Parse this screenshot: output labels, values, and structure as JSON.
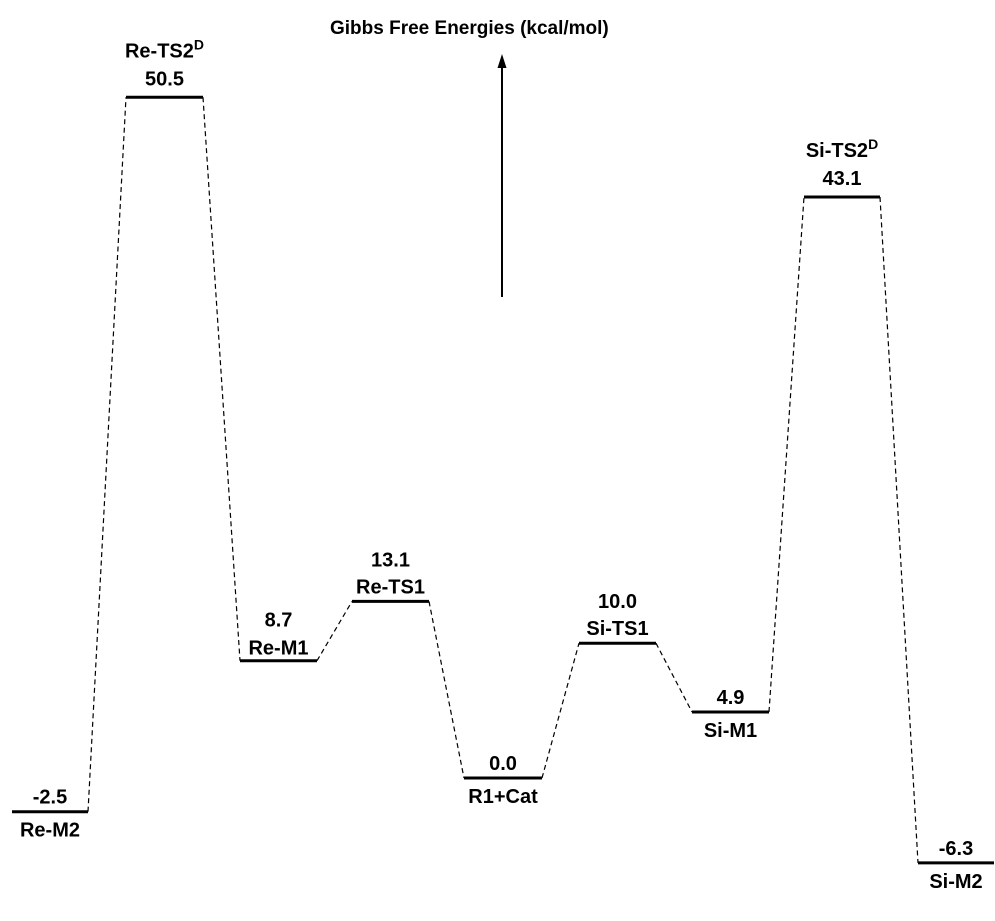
{
  "title": "Gibbs Free Energies (kcal/mol)",
  "states": [
    {
      "id": "re-m2",
      "name": "Re-M2",
      "sup": "",
      "energy": -2.5,
      "energy_label": "-2.5"
    },
    {
      "id": "re-ts2d",
      "name": "Re-TS2",
      "sup": "D",
      "energy": 50.5,
      "energy_label": "50.5"
    },
    {
      "id": "re-m1",
      "name": "Re-M1",
      "sup": "",
      "energy": 8.7,
      "energy_label": "8.7"
    },
    {
      "id": "re-ts1",
      "name": "Re-TS1",
      "sup": "",
      "energy": 13.1,
      "energy_label": "13.1"
    },
    {
      "id": "r1-cat",
      "name": "R1+Cat",
      "sup": "",
      "energy": 0.0,
      "energy_label": "0.0"
    },
    {
      "id": "si-ts1",
      "name": "Si-TS1",
      "sup": "",
      "energy": 10.0,
      "energy_label": "10.0"
    },
    {
      "id": "si-m1",
      "name": "Si-M1",
      "sup": "",
      "energy": 4.9,
      "energy_label": "4.9"
    },
    {
      "id": "si-ts2d",
      "name": "Si-TS2",
      "sup": "D",
      "energy": 43.1,
      "energy_label": "43.1"
    },
    {
      "id": "si-m2",
      "name": "Si-M2",
      "sup": "",
      "energy": -6.3,
      "energy_label": "-6.3"
    }
  ],
  "connections": [
    [
      "re-m2",
      "re-ts2d"
    ],
    [
      "re-ts2d",
      "re-m1"
    ],
    [
      "re-m1",
      "re-ts1"
    ],
    [
      "re-ts1",
      "r1-cat"
    ],
    [
      "r1-cat",
      "si-ts1"
    ],
    [
      "si-ts1",
      "si-m1"
    ],
    [
      "si-m1",
      "si-ts2d"
    ],
    [
      "si-ts2d",
      "si-m2"
    ]
  ]
}
